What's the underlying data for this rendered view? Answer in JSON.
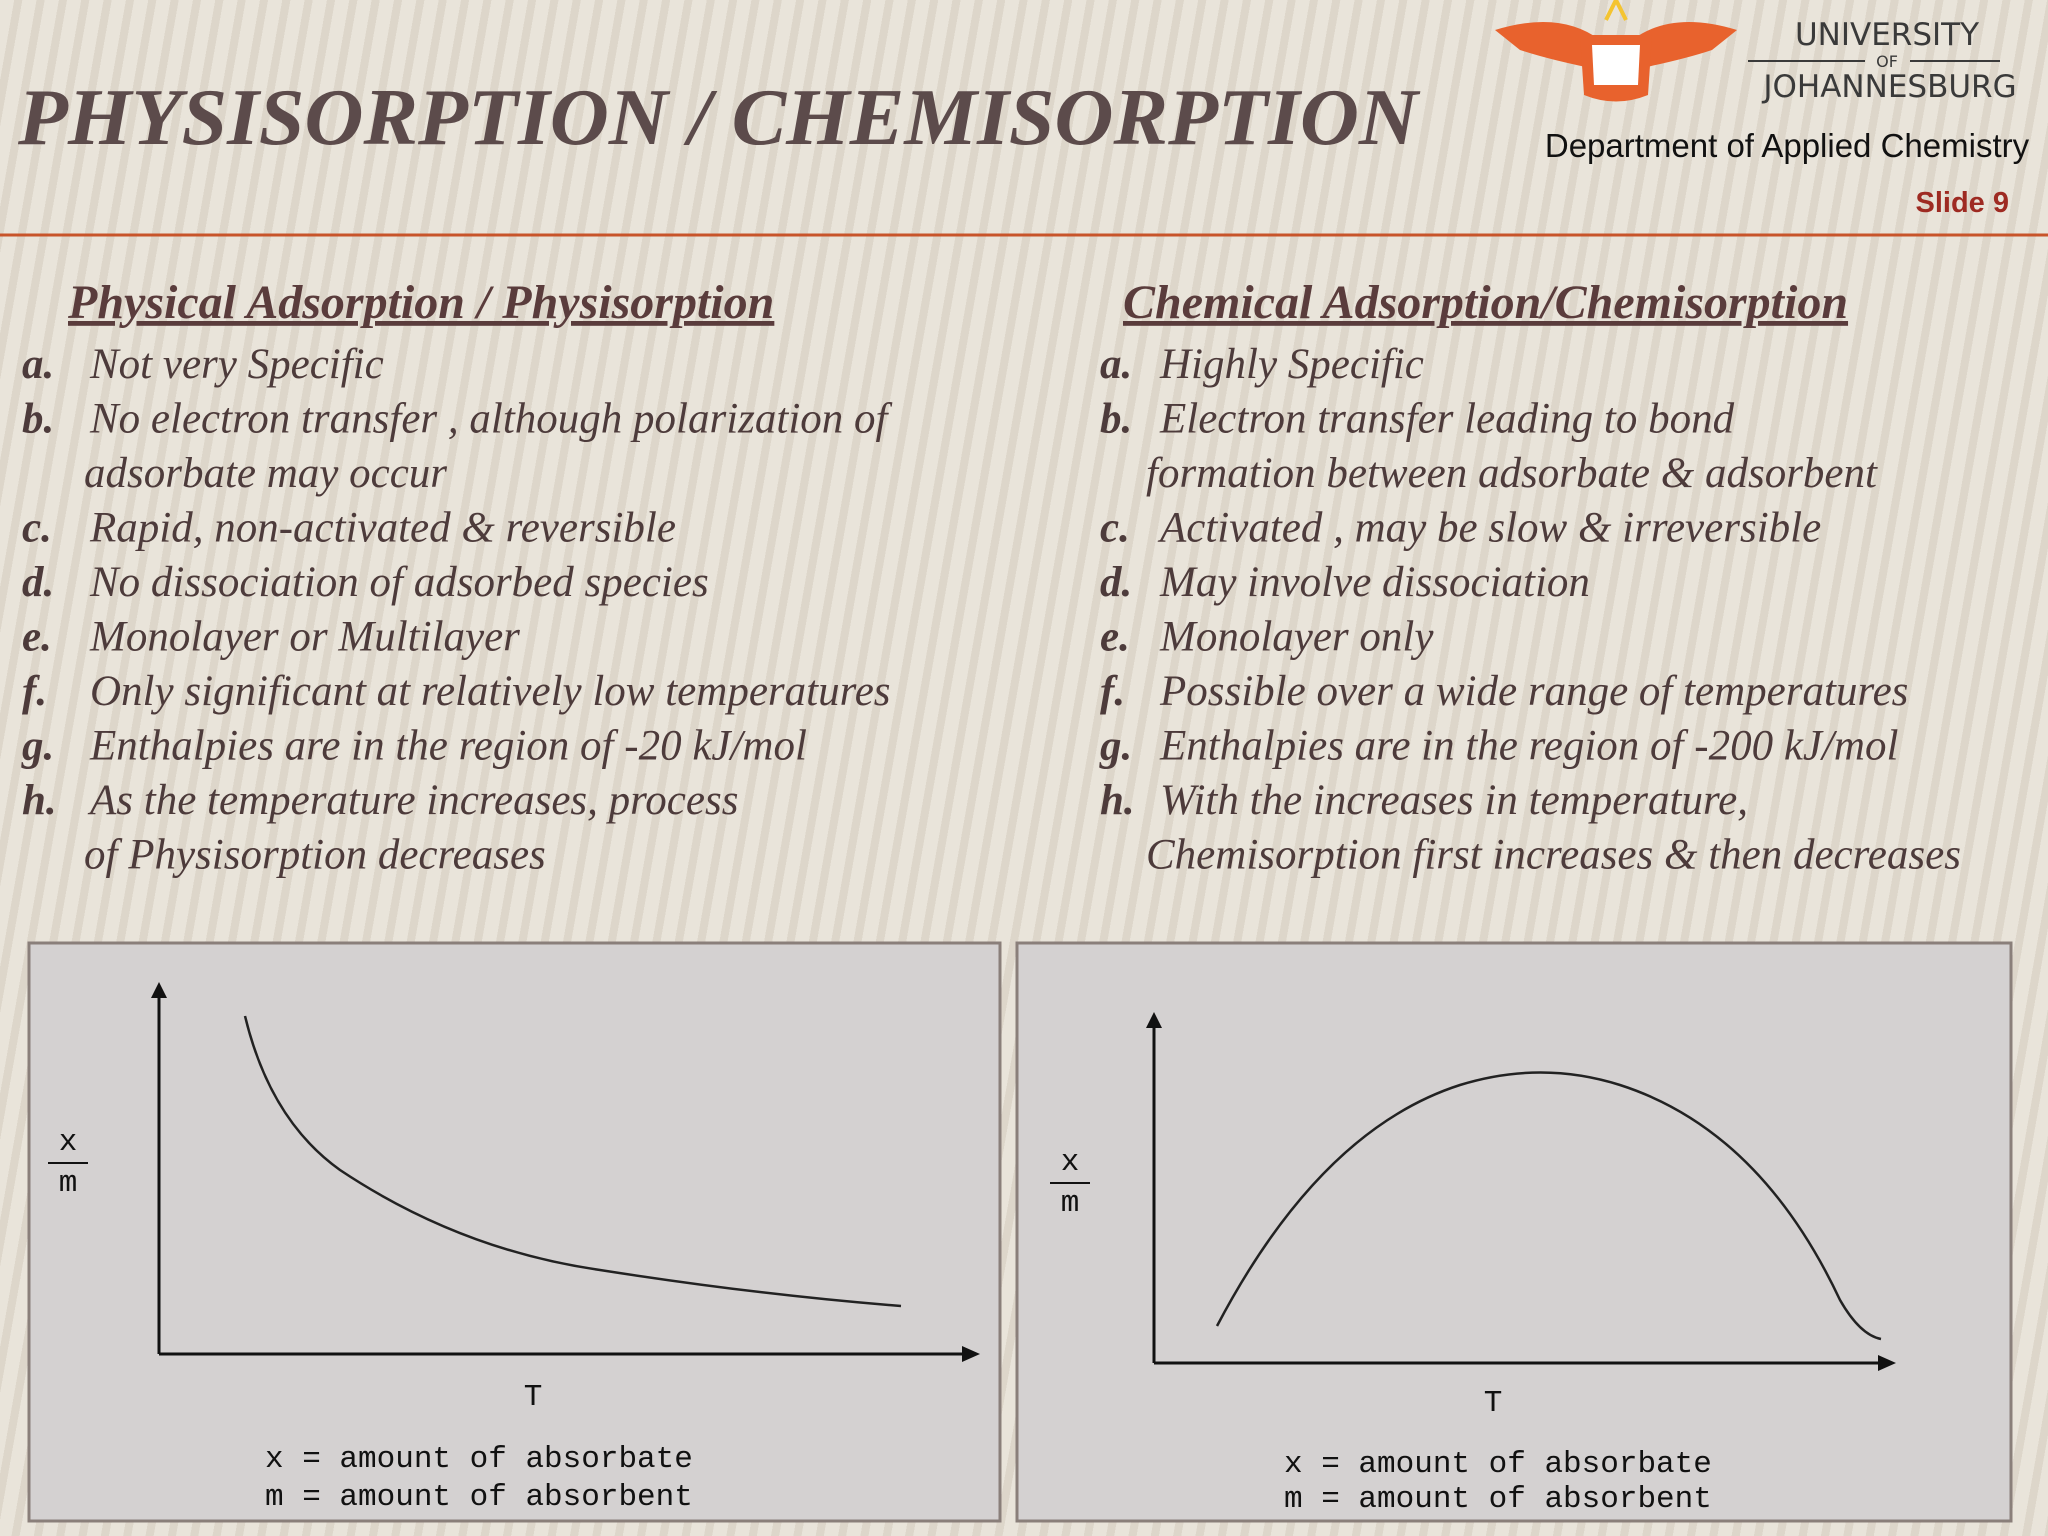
{
  "header": {
    "title": "PHYSISORPTION / CHEMISORPTION",
    "logo": {
      "line1": "UNIVERSITY",
      "line2": "OF",
      "line3": "JOHANNESBURG"
    },
    "department": "Department of Applied Chemistry",
    "slide": "Slide 9"
  },
  "columns": [
    {
      "heading": "Physical Adsorption / Physisorption",
      "items": [
        {
          "letter": "a.",
          "lines": [
            "Not very Specific"
          ]
        },
        {
          "letter": "b.",
          "lines": [
            "No electron transfer , although polarization of",
            "adsorbate may occur"
          ]
        },
        {
          "letter": "c.",
          "lines": [
            "Rapid, non-activated & reversible"
          ]
        },
        {
          "letter": "d.",
          "lines": [
            "No dissociation of adsorbed species"
          ]
        },
        {
          "letter": "e.",
          "lines": [
            "Monolayer or Multilayer"
          ]
        },
        {
          "letter": "f.",
          "lines": [
            "Only significant at relatively low temperatures"
          ]
        },
        {
          "letter": "g.",
          "lines": [
            "Enthalpies are in the region of -20 kJ/mol"
          ]
        },
        {
          "letter": "h.",
          "lines": [
            "As the temperature increases, process",
            "of Physisorption decreases"
          ]
        }
      ]
    },
    {
      "heading": "Chemical Adsorption/Chemisorption",
      "items": [
        {
          "letter": "a.",
          "lines": [
            "Highly Specific"
          ]
        },
        {
          "letter": "b.",
          "lines": [
            "Electron transfer leading to bond",
            "formation between adsorbate & adsorbent"
          ]
        },
        {
          "letter": "c.",
          "lines": [
            "Activated , may be slow & irreversible"
          ]
        },
        {
          "letter": "d.",
          "lines": [
            "May involve dissociation"
          ]
        },
        {
          "letter": "e.",
          "lines": [
            "Monolayer only"
          ]
        },
        {
          "letter": "f.",
          "lines": [
            "Possible over a wide range of  temperatures"
          ]
        },
        {
          "letter": "g.",
          "lines": [
            "Enthalpies  are in the region of -200 kJ/mol"
          ]
        },
        {
          "letter": "h.",
          "lines": [
            "With the increases in temperature,",
            "Chemisorption first increases & then decreases"
          ]
        }
      ]
    }
  ],
  "figures": [
    {
      "y_numerator": "x",
      "y_denominator": "m",
      "x_label": "T",
      "legend": [
        "x = amount of absorbate",
        "m = amount of absorbent"
      ]
    },
    {
      "y_numerator": "x",
      "y_denominator": "m",
      "x_label": "T",
      "legend": [
        "x = amount of absorbate",
        "m = amount of absorbent"
      ]
    }
  ]
}
